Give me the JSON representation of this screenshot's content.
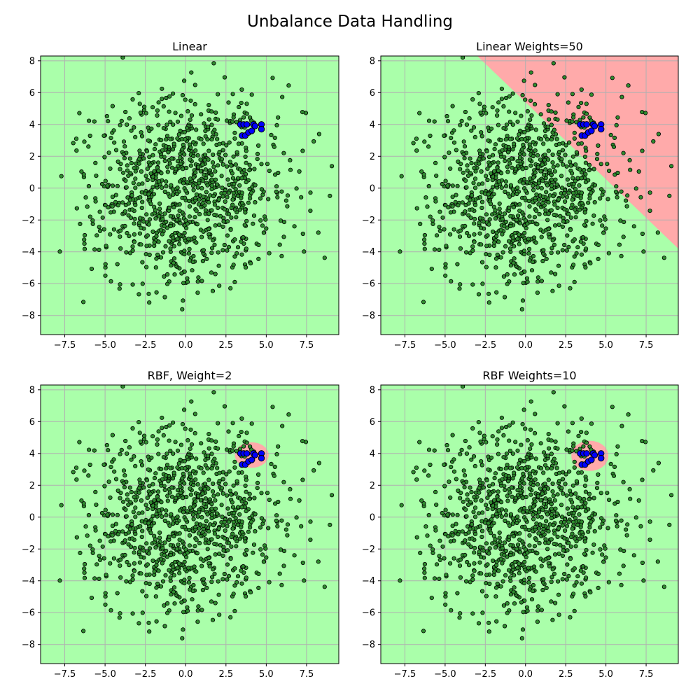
{
  "figure": {
    "suptitle": "Unbalance Data Handling",
    "colors": {
      "region_majority": "#aaffaa",
      "region_minority": "#ffaaaa",
      "point_majority": "#2e8b2e",
      "point_minority": "#0000ff",
      "grid": "#b0b0b0"
    }
  },
  "chart_data": [
    {
      "type": "scatter",
      "title": "Linear",
      "classifier": "linear",
      "class_weight": null,
      "xlim": [
        -9.0,
        9.5
      ],
      "ylim": [
        -9.2,
        8.3
      ],
      "xticks": [
        -7.5,
        -5.0,
        -2.5,
        0.0,
        2.5,
        5.0,
        7.5
      ],
      "xtick_labels": [
        "−7.5",
        "−5.0",
        "−2.5",
        "0.0",
        "2.5",
        "5.0",
        "7.5"
      ],
      "yticks": [
        -8,
        -6,
        -4,
        -2,
        0,
        2,
        4,
        6,
        8
      ],
      "ytick_labels": [
        "−8",
        "−6",
        "−4",
        "−2",
        "0",
        "2",
        "4",
        "6",
        "8"
      ],
      "grid": true,
      "decision_region": "none",
      "series": [
        {
          "class": "majority",
          "distribution": "normal",
          "center": [
            0,
            0
          ],
          "std": 3.0,
          "count": 1000,
          "seed": 7
        },
        {
          "class": "minority",
          "points": [
            [
              3.4,
              4.0
            ],
            [
              3.6,
              4.0
            ],
            [
              3.8,
              4.0
            ],
            [
              4.2,
              4.0
            ],
            [
              4.3,
              3.9
            ],
            [
              4.7,
              4.0
            ],
            [
              4.7,
              3.7
            ],
            [
              3.5,
              3.3
            ],
            [
              3.7,
              3.3
            ],
            [
              3.9,
              3.5
            ],
            [
              4.1,
              3.6
            ]
          ]
        }
      ]
    },
    {
      "type": "scatter",
      "title": "Linear Weights=50",
      "classifier": "linear",
      "class_weight": 50,
      "xlim": [
        -9.0,
        9.5
      ],
      "ylim": [
        -9.2,
        8.3
      ],
      "xticks": [
        -7.5,
        -5.0,
        -2.5,
        0.0,
        2.5,
        5.0,
        7.5
      ],
      "xtick_labels": [
        "−7.5",
        "−5.0",
        "−2.5",
        "0.0",
        "2.5",
        "5.0",
        "7.5"
      ],
      "yticks": [
        -8,
        -6,
        -4,
        -2,
        0,
        2,
        4,
        6,
        8
      ],
      "ytick_labels": [
        "−8",
        "−6",
        "−4",
        "−2",
        "0",
        "2",
        "4",
        "6",
        "8"
      ],
      "grid": true,
      "decision_region": "linear",
      "boundary_line": [
        [
          -3.0,
          8.3
        ],
        [
          9.5,
          -3.8
        ]
      ],
      "series": [
        {
          "class": "majority",
          "distribution": "normal",
          "center": [
            0,
            0
          ],
          "std": 3.0,
          "count": 1000,
          "seed": 7
        },
        {
          "class": "minority",
          "points": [
            [
              3.4,
              4.0
            ],
            [
              3.6,
              4.0
            ],
            [
              3.8,
              4.0
            ],
            [
              4.2,
              4.0
            ],
            [
              4.3,
              3.9
            ],
            [
              4.7,
              4.0
            ],
            [
              4.7,
              3.7
            ],
            [
              3.5,
              3.3
            ],
            [
              3.7,
              3.3
            ],
            [
              3.9,
              3.5
            ],
            [
              4.1,
              3.6
            ]
          ]
        }
      ]
    },
    {
      "type": "scatter",
      "title": "RBF, Weight=2",
      "classifier": "rbf",
      "class_weight": 2,
      "xlim": [
        -9.0,
        9.5
      ],
      "ylim": [
        -9.2,
        8.3
      ],
      "xticks": [
        -7.5,
        -5.0,
        -2.5,
        0.0,
        2.5,
        5.0,
        7.5
      ],
      "xtick_labels": [
        "−7.5",
        "−5.0",
        "−2.5",
        "0.0",
        "2.5",
        "5.0",
        "7.5"
      ],
      "yticks": [
        -8,
        -6,
        -4,
        -2,
        0,
        2,
        4,
        6,
        8
      ],
      "ytick_labels": [
        "−8",
        "−6",
        "−4",
        "−2",
        "0",
        "2",
        "4",
        "6",
        "8"
      ],
      "grid": true,
      "decision_region": "ellipse",
      "region_center": [
        4.1,
        3.9
      ],
      "region_radii": [
        1.05,
        0.8
      ],
      "series": [
        {
          "class": "majority",
          "distribution": "normal",
          "center": [
            0,
            0
          ],
          "std": 3.0,
          "count": 1000,
          "seed": 7
        },
        {
          "class": "minority",
          "points": [
            [
              3.4,
              4.0
            ],
            [
              3.6,
              4.0
            ],
            [
              3.8,
              4.0
            ],
            [
              4.2,
              4.0
            ],
            [
              4.3,
              3.9
            ],
            [
              4.7,
              4.0
            ],
            [
              4.7,
              3.7
            ],
            [
              3.5,
              3.3
            ],
            [
              3.7,
              3.3
            ],
            [
              3.9,
              3.5
            ],
            [
              4.1,
              3.6
            ]
          ]
        }
      ]
    },
    {
      "type": "scatter",
      "title": "RBF Weights=10",
      "classifier": "rbf",
      "class_weight": 10,
      "xlim": [
        -9.0,
        9.5
      ],
      "ylim": [
        -9.2,
        8.3
      ],
      "xticks": [
        -7.5,
        -5.0,
        -2.5,
        0.0,
        2.5,
        5.0,
        7.5
      ],
      "xtick_labels": [
        "−7.5",
        "−5.0",
        "−2.5",
        "0.0",
        "2.5",
        "5.0",
        "7.5"
      ],
      "yticks": [
        -8,
        -6,
        -4,
        -2,
        0,
        2,
        4,
        6,
        8
      ],
      "ytick_labels": [
        "−8",
        "−6",
        "−4",
        "−2",
        "0",
        "2",
        "4",
        "6",
        "8"
      ],
      "grid": true,
      "decision_region": "ellipse",
      "region_center": [
        4.0,
        3.85
      ],
      "region_radii": [
        1.15,
        0.95
      ],
      "series": [
        {
          "class": "majority",
          "distribution": "normal",
          "center": [
            0,
            0
          ],
          "std": 3.0,
          "count": 1000,
          "seed": 7
        },
        {
          "class": "minority",
          "points": [
            [
              3.4,
              4.0
            ],
            [
              3.6,
              4.0
            ],
            [
              3.8,
              4.0
            ],
            [
              4.2,
              4.0
            ],
            [
              4.3,
              3.9
            ],
            [
              4.7,
              4.0
            ],
            [
              4.7,
              3.7
            ],
            [
              3.5,
              3.3
            ],
            [
              3.7,
              3.3
            ],
            [
              3.9,
              3.5
            ],
            [
              4.1,
              3.6
            ]
          ]
        }
      ]
    }
  ]
}
